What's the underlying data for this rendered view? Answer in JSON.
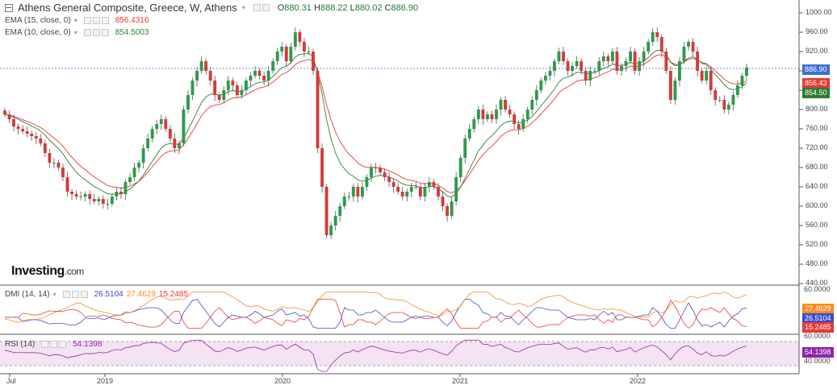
{
  "header": {
    "title": "Athens General Composite, Greece, W, Athens",
    "ohlc": {
      "o_label": "O",
      "o": "880.31",
      "h_label": "H",
      "h": "888.22",
      "l_label": "L",
      "l": "880.02",
      "c_label": "C",
      "c": "886.90"
    }
  },
  "indicators": {
    "ema15": {
      "label": "EMA (15, close, 0)",
      "value": "856.4316",
      "color": "#e53935"
    },
    "ema10": {
      "label": "EMA (10, close, 0)",
      "value": "854.5003",
      "color": "#2e7d32"
    },
    "dmi": {
      "label": "DMI (14, 14)",
      "v1": "26.5104",
      "v2": "27.4629",
      "v3": "15.2485",
      "c1": "#3b4cca",
      "c2": "#ff8a1f",
      "c3": "#e53935"
    },
    "rsi": {
      "label": "RSI (14)",
      "value": "54.1398",
      "color": "#9c27b0"
    }
  },
  "logo": {
    "brand": "Investing",
    "suffix": ".com"
  },
  "price_tags": {
    "last": "886.90",
    "ema15": "856.43",
    "ema10": "854.50"
  },
  "dmi_tags": {
    "orange": "27.4629",
    "blue": "26.5104",
    "red": "15.2485"
  },
  "rsi_tag": "54.1398",
  "axis_labels": {
    "price": [
      "1000.00",
      "960.00",
      "920.00",
      "880.00",
      "840.00",
      "800.00",
      "760.00",
      "720.00",
      "680.00",
      "640.00",
      "600.00",
      "560.00",
      "520.00",
      "480.00",
      "440.00"
    ],
    "dmi": [
      "60.0000"
    ],
    "rsi": [
      "60.0000",
      "40.0000"
    ],
    "x": [
      "Jul",
      "2019",
      "2020",
      "2021",
      "2022"
    ]
  },
  "colors": {
    "up": "#2e9a4a",
    "down": "#d63a3a",
    "grid": "#eeeeee",
    "border": "#555555"
  },
  "chart_data": {
    "type": "candlestick",
    "title": "Athens General Composite, Greece, W, Athens",
    "interval": "weekly",
    "ylim": [
      440,
      1000
    ],
    "x_range": [
      "2018-07",
      "2022-06"
    ],
    "xticks": [
      "Jul",
      "2019",
      "2020",
      "2021",
      "2022"
    ],
    "series": [
      {
        "name": "Athens General Composite",
        "type": "candlestick",
        "close": [
          790,
          780,
          765,
          760,
          755,
          750,
          745,
          740,
          730,
          710,
          690,
          690,
          680,
          660,
          630,
          625,
          620,
          620,
          625,
          615,
          610,
          615,
          605,
          605,
          620,
          630,
          625,
          650,
          660,
          680,
          690,
          720,
          740,
          760,
          770,
          780,
          760,
          740,
          720,
          730,
          800,
          830,
          860,
          880,
          900,
          880,
          860,
          830,
          820,
          840,
          860,
          850,
          830,
          840,
          860,
          870,
          880,
          870,
          860,
          880,
          900,
          920,
          930,
          900,
          930,
          960,
          940,
          920,
          920,
          880,
          720,
          640,
          540,
          560,
          580,
          600,
          620,
          620,
          640,
          620,
          640,
          660,
          680,
          680,
          670,
          660,
          650,
          640,
          630,
          620,
          630,
          640,
          640,
          620,
          640,
          650,
          640,
          620,
          600,
          580,
          610,
          660,
          700,
          740,
          760,
          780,
          800,
          780,
          790,
          780,
          800,
          820,
          800,
          790,
          770,
          760,
          780,
          800,
          820,
          840,
          860,
          870,
          880,
          900,
          920,
          900,
          880,
          890,
          900,
          880,
          860,
          880,
          880,
          900,
          910,
          900,
          920,
          880,
          890,
          900,
          920,
          880,
          900,
          920,
          940,
          960,
          950,
          920,
          880,
          820,
          860,
          900,
          930,
          940,
          920,
          880,
          860,
          880,
          840,
          820,
          820,
          800,
          810,
          830,
          850,
          870,
          887
        ]
      },
      {
        "name": "EMA (15, close, 0)",
        "type": "line",
        "last": 856.4316
      },
      {
        "name": "EMA (10, close, 0)",
        "type": "line",
        "last": 854.5003
      }
    ],
    "subcharts": [
      {
        "name": "DMI (14, 14)",
        "ylim": [
          0,
          60
        ],
        "series": [
          {
            "name": "DMI +DI",
            "last": 26.5104
          },
          {
            "name": "DMI ADX",
            "last": 27.4629
          },
          {
            "name": "DMI -DI",
            "last": 15.2485
          }
        ]
      },
      {
        "name": "RSI (14)",
        "ylim": [
          35,
          60
        ],
        "bands": [
          40,
          60
        ],
        "series": [
          {
            "name": "RSI",
            "last": 54.1398
          }
        ]
      }
    ]
  }
}
